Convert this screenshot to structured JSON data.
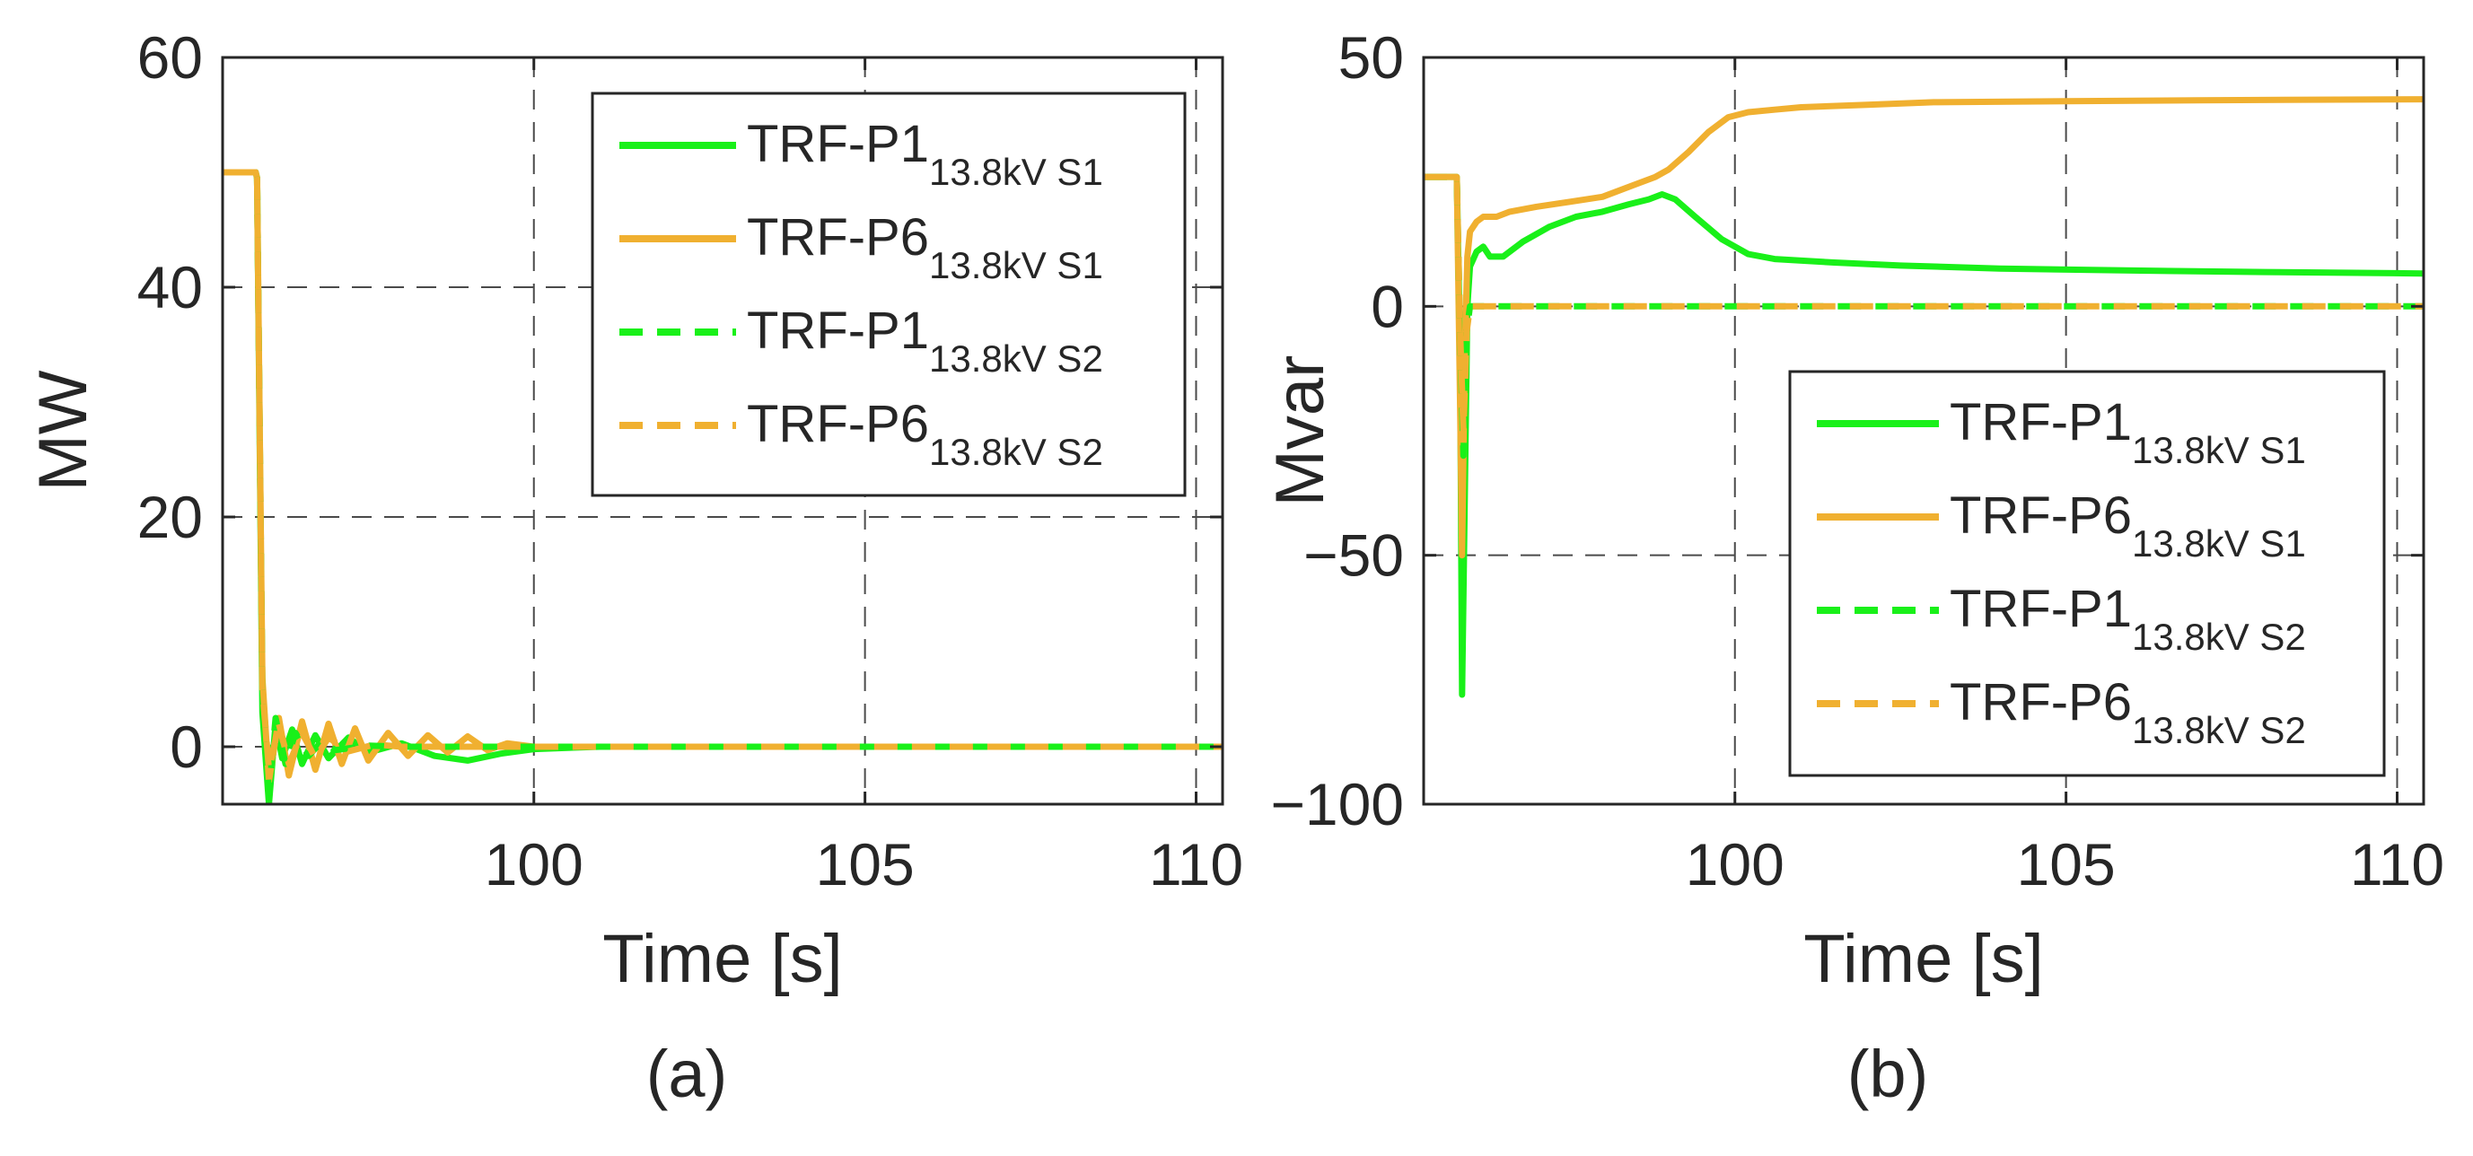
{
  "chart_data": [
    {
      "type": "line",
      "caption": "(a)",
      "xlabel": "Time [s]",
      "ylabel": "MW",
      "xlim": [
        95.3,
        110.4
      ],
      "ylim": [
        -5,
        60
      ],
      "xticks": [
        100,
        105,
        110
      ],
      "yticks": [
        0,
        20,
        40,
        60
      ],
      "xtick_labels": [
        "100",
        "105",
        "110"
      ],
      "ytick_labels": [
        "0",
        "20",
        "40",
        "60"
      ],
      "grid": true,
      "legend_position": "top-right",
      "series": [
        {
          "name": "TRF-P1",
          "subscript": "13.8kV S1",
          "color": "#19f019",
          "dash": "solid",
          "x": [
            95.3,
            95.8,
            95.82,
            95.9,
            96.0,
            96.1,
            96.2,
            96.35,
            96.5,
            96.7,
            96.9,
            97.2,
            97.5,
            98.0,
            98.5,
            99.0,
            99.5,
            100.0,
            101.0,
            105.0,
            110.4
          ],
          "values": [
            50,
            50,
            49.5,
            3,
            -5,
            2,
            -1,
            1.5,
            -1.5,
            1,
            -1,
            0.8,
            -0.5,
            0.3,
            -0.8,
            -1.2,
            -0.6,
            -0.2,
            0,
            0,
            0
          ]
        },
        {
          "name": "TRF-P6",
          "subscript": "13.8kV S1",
          "color": "#f0b030",
          "dash": "solid",
          "x": [
            95.3,
            95.8,
            95.82,
            95.9,
            96.0,
            96.15,
            96.3,
            96.5,
            96.7,
            96.9,
            97.1,
            97.3,
            97.5,
            97.8,
            98.1,
            98.4,
            98.7,
            99.0,
            99.3,
            99.6,
            100.0,
            101.0,
            105.0,
            110.4
          ],
          "values": [
            50,
            50,
            49.5,
            6,
            -3,
            2.5,
            -2.5,
            2.2,
            -2,
            2,
            -1.5,
            1.6,
            -1.2,
            1.2,
            -0.8,
            1,
            -0.5,
            0.9,
            -0.3,
            0.3,
            0,
            0,
            0,
            0
          ]
        },
        {
          "name": "TRF-P1",
          "subscript": "13.8kV S2",
          "color": "#19f019",
          "dash": "dashed",
          "x": [
            95.3,
            95.8,
            95.82,
            95.9,
            96.0,
            96.1,
            96.25,
            96.4,
            96.6,
            96.8,
            97.0,
            97.5,
            98.0,
            110.4
          ],
          "values": [
            50,
            50,
            49.5,
            5,
            -4,
            2.5,
            -1.5,
            1.2,
            -0.8,
            0.5,
            -0.3,
            0.1,
            0,
            0
          ]
        },
        {
          "name": "TRF-P6",
          "subscript": "13.8kV S2",
          "color": "#f0b030",
          "dash": "dashed",
          "x": [
            95.3,
            95.8,
            95.82,
            95.9,
            96.0,
            96.15,
            96.3,
            96.5,
            96.7,
            96.9,
            97.2,
            97.6,
            98.0,
            110.4
          ],
          "values": [
            50,
            50,
            49.5,
            5,
            -2,
            2,
            -1.5,
            1.2,
            -1,
            0.8,
            -0.4,
            0.2,
            0,
            0
          ]
        }
      ]
    },
    {
      "type": "line",
      "caption": "(b)",
      "xlabel": "Time [s]",
      "ylabel": "Mvar",
      "xlim": [
        95.3,
        110.4
      ],
      "ylim": [
        -100,
        50
      ],
      "xticks": [
        100,
        105,
        110
      ],
      "yticks": [
        -100,
        -50,
        0,
        50
      ],
      "xtick_labels": [
        "100",
        "105",
        "110"
      ],
      "ytick_labels": [
        "−100",
        "−50",
        "0",
        "50"
      ],
      "grid": true,
      "legend_position": "bottom-right",
      "series": [
        {
          "name": "TRF-P1",
          "subscript": "13.8kV S1",
          "color": "#19f019",
          "dash": "solid",
          "x": [
            95.3,
            95.8,
            95.85,
            95.88,
            95.92,
            95.96,
            96.0,
            96.1,
            96.2,
            96.3,
            96.5,
            96.8,
            97.2,
            97.6,
            98.0,
            98.4,
            98.7,
            98.9,
            99.1,
            99.4,
            99.8,
            100.2,
            100.6,
            101.5,
            102.5,
            104.0,
            106.0,
            108.0,
            110.4
          ],
          "values": [
            26,
            26,
            -10,
            -78,
            -40,
            0,
            8,
            11,
            12,
            10,
            10,
            13,
            16,
            18,
            19,
            20.5,
            21.5,
            22.5,
            21.5,
            18,
            13.5,
            10.5,
            9.5,
            8.8,
            8.2,
            7.6,
            7.2,
            6.9,
            6.6
          ]
        },
        {
          "name": "TRF-P6",
          "subscript": "13.8kV S1",
          "color": "#f0b030",
          "dash": "solid",
          "x": [
            95.3,
            95.8,
            95.85,
            95.88,
            95.92,
            95.96,
            96.0,
            96.1,
            96.2,
            96.4,
            96.6,
            97.0,
            97.5,
            98.0,
            98.5,
            98.8,
            99.0,
            99.3,
            99.6,
            99.9,
            100.2,
            100.6,
            101.0,
            102.0,
            103.0,
            105.0,
            107.0,
            110.4
          ],
          "values": [
            26,
            26,
            -20,
            -50,
            -10,
            10,
            15,
            17,
            18,
            18,
            19,
            20,
            21,
            22,
            24.5,
            26,
            27.5,
            31,
            35,
            38,
            39,
            39.5,
            40,
            40.5,
            41,
            41.2,
            41.4,
            41.6
          ]
        },
        {
          "name": "TRF-P1",
          "subscript": "13.8kV S2",
          "color": "#19f019",
          "dash": "dashed",
          "x": [
            95.3,
            95.8,
            95.85,
            95.9,
            95.95,
            96.0,
            96.2,
            110.4
          ],
          "values": [
            26,
            26,
            -5,
            -30,
            -5,
            0,
            0,
            0
          ]
        },
        {
          "name": "TRF-P6",
          "subscript": "13.8kV S2",
          "color": "#f0b030",
          "dash": "dashed",
          "x": [
            95.3,
            95.8,
            95.85,
            95.9,
            95.95,
            96.0,
            96.2,
            110.4
          ],
          "values": [
            26,
            26,
            -5,
            -25,
            -5,
            0,
            0,
            0
          ]
        }
      ]
    }
  ]
}
